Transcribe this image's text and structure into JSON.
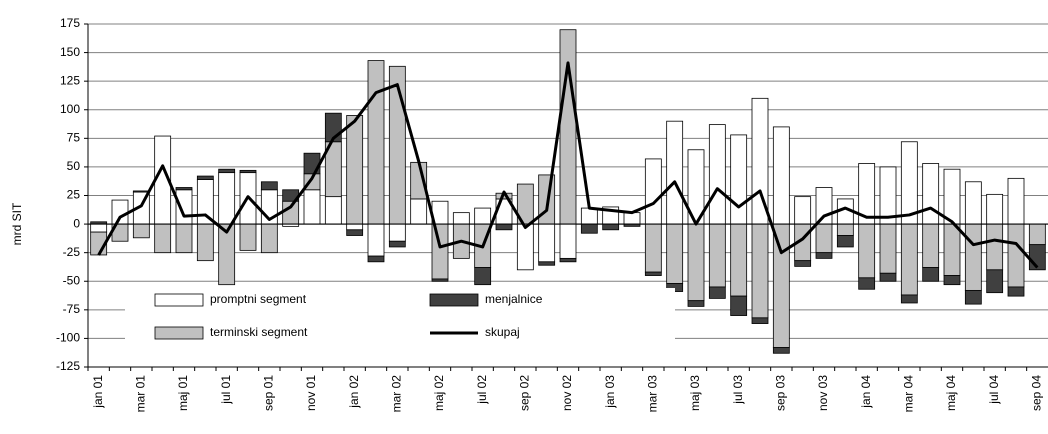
{
  "chart_data": {
    "type": "bar",
    "stacked": true,
    "ylabel": "mrd SIT",
    "categories": [
      "jan 01",
      null,
      "mar 01",
      null,
      "maj 01",
      null,
      "jul 01",
      null,
      "sep 01",
      null,
      "nov 01",
      null,
      "jan 02",
      null,
      "mar 02",
      null,
      "maj 02",
      null,
      "jul 02",
      null,
      "sep 02",
      null,
      "nov 02",
      null,
      "jan 03",
      null,
      "mar 03",
      null,
      "maj 03",
      null,
      "jul 03",
      null,
      "sep 03",
      null,
      "nov 03",
      null,
      "jan 04",
      null,
      "mar 04",
      null,
      "maj 04",
      null,
      "jul 04",
      null,
      "sep 04"
    ],
    "series": [
      {
        "name": "promptni segment",
        "type": "bar",
        "color": "#ffffff",
        "values": [
          -7,
          21,
          28,
          77,
          30,
          39,
          45,
          45,
          30,
          -2,
          30,
          24,
          -5,
          -28,
          -15,
          22,
          20,
          10,
          14,
          22,
          -40,
          -33,
          -30,
          14,
          15,
          10,
          57,
          90,
          65,
          87,
          78,
          110,
          85,
          24,
          32,
          22,
          53,
          50,
          72,
          53,
          48,
          37,
          26,
          40,
          0
        ]
      },
      {
        "name": "terminski segment",
        "type": "bar",
        "color": "#c0c0c0",
        "values": [
          -20,
          -15,
          -12,
          -25,
          -25,
          -32,
          -53,
          -23,
          -25,
          20,
          14,
          48,
          95,
          143,
          138,
          32,
          -48,
          -30,
          -38,
          5,
          35,
          43,
          170,
          0,
          0,
          0,
          -42,
          -52,
          -67,
          -55,
          -63,
          -82,
          -108,
          -32,
          -25,
          -10,
          -47,
          -43,
          -62,
          -38,
          -45,
          -58,
          -40,
          -55,
          -18
        ]
      },
      {
        "name": "menjalnice",
        "type": "bar",
        "color": "#404040",
        "values": [
          2,
          0,
          1,
          0,
          2,
          3,
          3,
          2,
          7,
          10,
          18,
          25,
          -5,
          -5,
          -5,
          0,
          -2,
          0,
          -15,
          -5,
          0,
          -3,
          -3,
          -8,
          -5,
          -2,
          -3,
          -7,
          -5,
          -10,
          -17,
          -5,
          -5,
          -5,
          -5,
          -10,
          -10,
          -7,
          -7,
          -12,
          -8,
          -12,
          -20,
          -8,
          -22
        ]
      },
      {
        "name": "skupaj",
        "type": "line",
        "color": "#000000",
        "values": [
          -27,
          6,
          16,
          51,
          7,
          8,
          -7,
          24,
          4,
          15,
          40,
          75,
          90,
          115,
          122,
          55,
          -20,
          -15,
          -20,
          28,
          -3,
          12,
          141,
          14,
          12,
          10,
          18,
          37,
          0,
          31,
          15,
          29,
          -25,
          -13,
          7,
          14,
          6,
          6,
          8,
          14,
          2,
          -18,
          -14,
          -17,
          -38
        ]
      }
    ],
    "ylim": [
      -125,
      175
    ],
    "yticks": [
      -125,
      -100,
      -75,
      -50,
      -25,
      0,
      25,
      50,
      75,
      100,
      125,
      150,
      175
    ],
    "grid": true,
    "legend": "bottom-left"
  }
}
